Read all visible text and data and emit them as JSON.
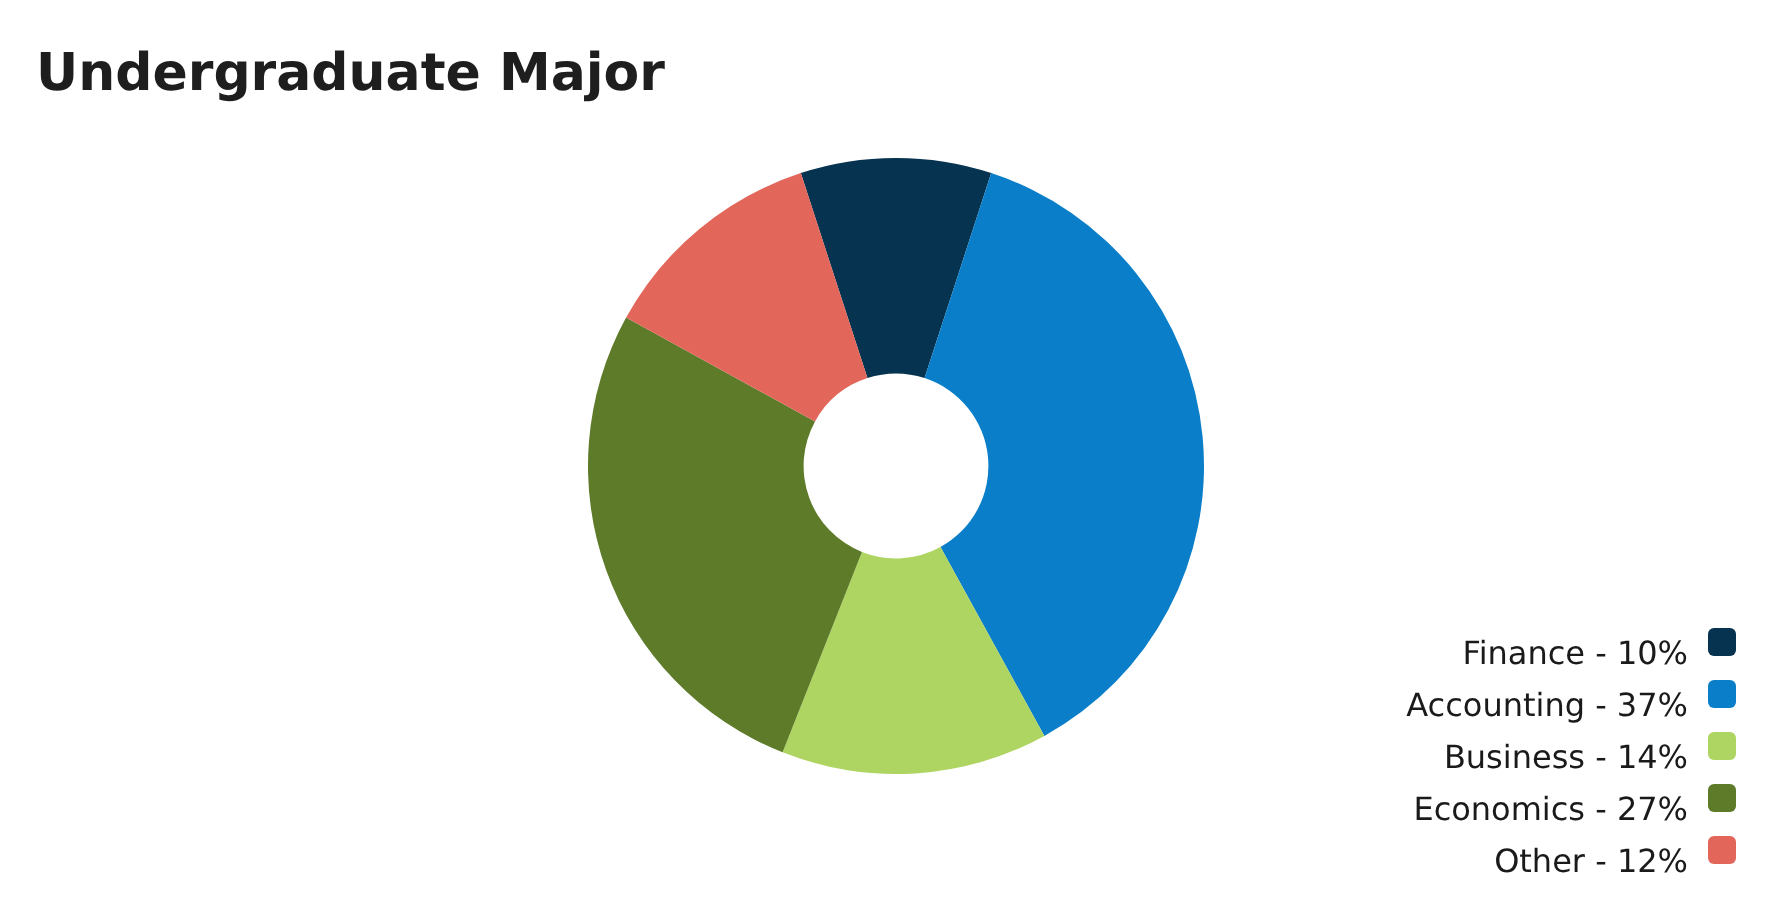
{
  "chart_data": {
    "type": "donut",
    "title": "Undergraduate Major",
    "categories": [
      "Finance - 10%",
      "Accounting - 37%",
      "Business - 14%",
      "Economics - 27%",
      "Other - 12%"
    ],
    "values": [
      10,
      37,
      14,
      27,
      12
    ],
    "colors": [
      "#06334f",
      "#0a7ec8",
      "#aed562",
      "#5d7b29",
      "#e2665a"
    ],
    "legend": "bottom right"
  }
}
